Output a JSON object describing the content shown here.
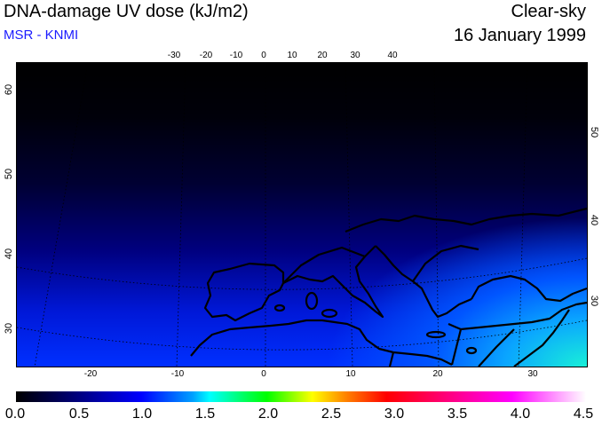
{
  "header": {
    "title": "DNA-damage UV dose (kJ/m2)",
    "subtitle": "MSR - KNMI",
    "condition": "Clear-sky",
    "date": "16 January 1999"
  },
  "map": {
    "top_lon_ticks": [
      "-30",
      "-20",
      "-10",
      "0",
      "10",
      "20",
      "30",
      "40"
    ],
    "bottom_lon_ticks": [
      "-20",
      "-10",
      "0",
      "10",
      "20",
      "30"
    ],
    "left_lat_ticks": [
      "60",
      "50",
      "40",
      "30"
    ],
    "right_lat_ticks": [
      "50",
      "40",
      "30"
    ],
    "colors": {
      "land_outline": "#000000",
      "grid_dotted": "#000000"
    }
  },
  "colorbar": {
    "labels": [
      "0.0",
      "0.5",
      "1.0",
      "1.5",
      "2.0",
      "2.5",
      "3.0",
      "3.5",
      "4.0",
      "4.5"
    ],
    "range": [
      0.0,
      4.5
    ]
  }
}
